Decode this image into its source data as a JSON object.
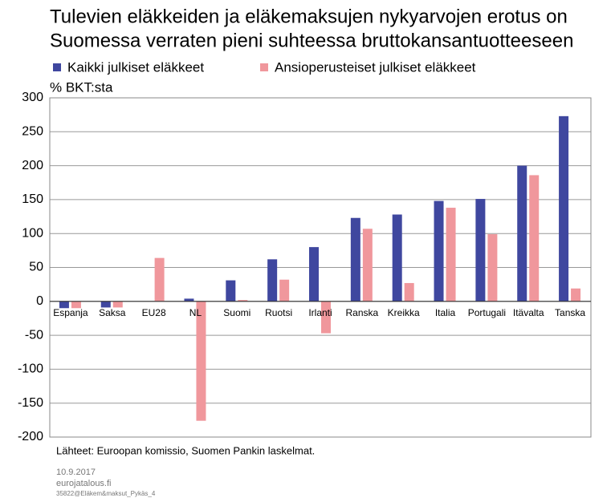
{
  "chart_data": {
    "type": "bar",
    "title": [
      "Tulevien eläkkeiden ja eläkemaksujen nykyarvojen erotus on",
      "Suomessa verraten pieni suhteessa bruttokansantuotteeseen"
    ],
    "y_label": "% BKT:sta",
    "categories": [
      "Espanja",
      "Saksa",
      "EU28",
      "NL",
      "Suomi",
      "Ruotsi",
      "Irlanti",
      "Ranska",
      "Kreikka",
      "Italia",
      "Portugali",
      "Itävalta",
      "Tanska"
    ],
    "series": [
      {
        "name": "Kaikki julkiset eläkkeet",
        "color": "#3f479f",
        "values": [
          -10,
          -9,
          null,
          4,
          31,
          62,
          80,
          123,
          128,
          148,
          151,
          200,
          273
        ]
      },
      {
        "name": "Ansioperusteiset julkiset eläkkeet",
        "color": "#f0979c",
        "values": [
          -10,
          -9,
          64,
          -176,
          2,
          32,
          -47,
          107,
          27,
          138,
          99,
          186,
          19
        ]
      }
    ],
    "ylim": [
      -200,
      300
    ],
    "yticks": [
      -200,
      -150,
      -100,
      -50,
      0,
      50,
      100,
      150,
      200,
      250,
      300
    ],
    "grid": true,
    "source": "Lähteet: Euroopan komissio, Suomen Pankin laskelmat.",
    "date": "10.9.2017",
    "site": "eurojatalous.fi",
    "code": "35822@Eläkem&maksut_Pykäs_4"
  }
}
